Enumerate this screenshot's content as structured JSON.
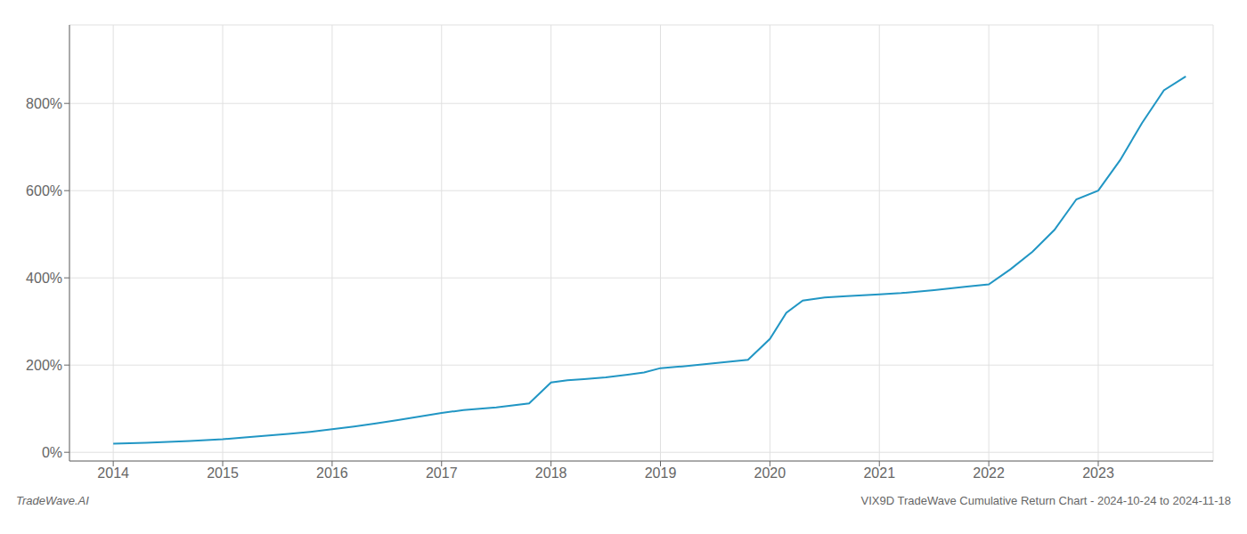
{
  "chart_data": {
    "type": "line",
    "title": "VIX9D TradeWave Cumulative Return Chart - 2024-10-24 to 2024-11-18",
    "annotations": [
      "TradeWave.AI"
    ],
    "x": [
      2014.0,
      2014.15,
      2014.3,
      2014.5,
      2014.7,
      2014.85,
      2015.0,
      2015.2,
      2015.4,
      2015.6,
      2015.8,
      2016.0,
      2016.2,
      2016.4,
      2016.6,
      2016.8,
      2017.0,
      2017.2,
      2017.5,
      2017.8,
      2018.0,
      2018.15,
      2018.3,
      2018.5,
      2018.7,
      2018.85,
      2019.0,
      2019.2,
      2019.4,
      2019.6,
      2019.8,
      2020.0,
      2020.15,
      2020.3,
      2020.5,
      2020.7,
      2020.85,
      2021.0,
      2021.2,
      2021.5,
      2021.8,
      2022.0,
      2022.2,
      2022.4,
      2022.6,
      2022.8,
      2023.0,
      2023.2,
      2023.4,
      2023.6,
      2023.8
    ],
    "values": [
      20,
      21,
      22,
      24,
      26,
      28,
      30,
      34,
      38,
      42,
      47,
      53,
      59,
      66,
      74,
      82,
      90,
      97,
      103,
      112,
      160,
      165,
      168,
      172,
      178,
      183,
      193,
      197,
      202,
      207,
      212,
      260,
      320,
      348,
      355,
      358,
      360,
      362,
      365,
      372,
      380,
      385,
      420,
      460,
      510,
      580,
      600,
      670,
      755,
      830,
      862
    ],
    "color": "#2196c4",
    "xlim": [
      2013.6,
      2024.05
    ],
    "xticks": [
      2014,
      2015,
      2016,
      2017,
      2018,
      2019,
      2020,
      2021,
      2022,
      2023
    ],
    "ylim": [
      -20,
      980
    ],
    "yticks": [
      {
        "value": 0,
        "label": "0%"
      },
      {
        "value": 200,
        "label": "200%"
      },
      {
        "value": 400,
        "label": "400%"
      },
      {
        "value": 600,
        "label": "600%"
      },
      {
        "value": 800,
        "label": "800%"
      }
    ],
    "grid": true
  }
}
